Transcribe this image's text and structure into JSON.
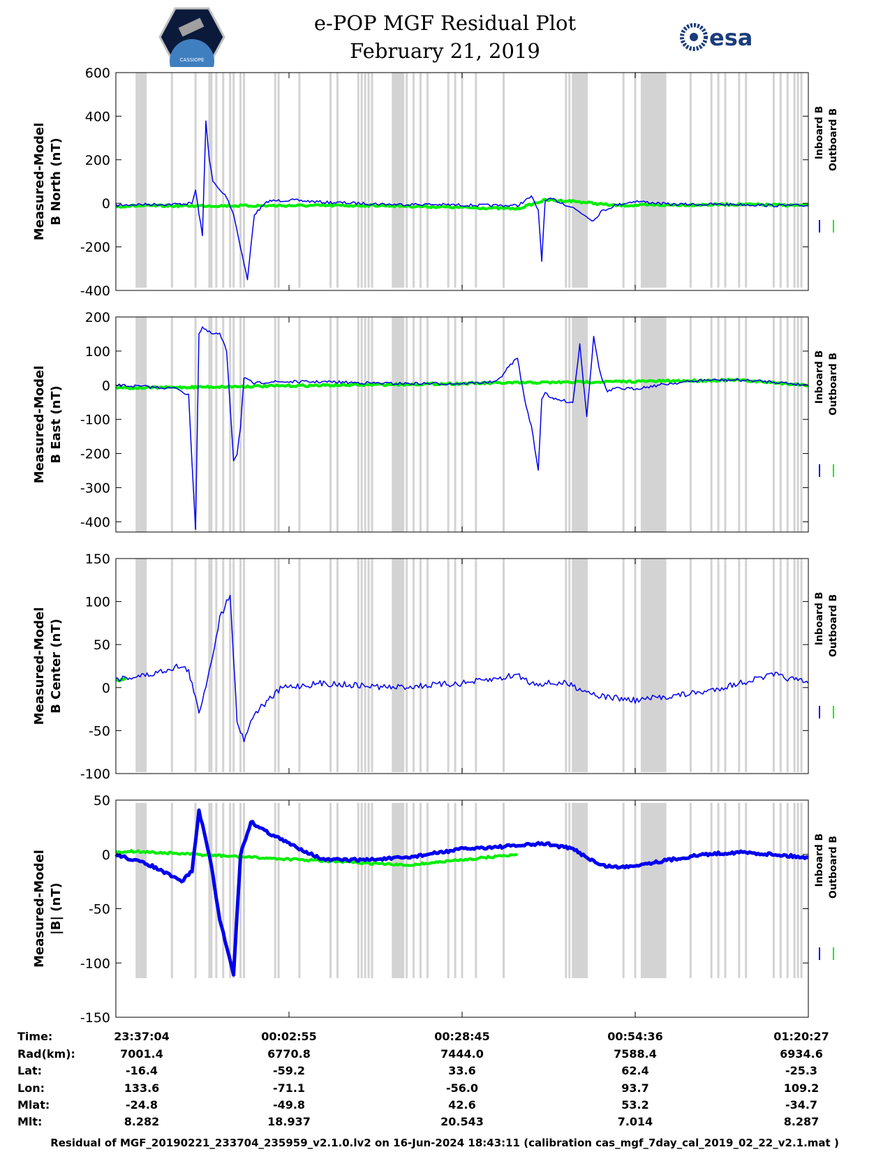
{
  "header": {
    "title_line1": "e-POP MGF Residual Plot",
    "title_line2": "February 21, 2019",
    "logo_left_text": "CASSIOPE",
    "logo_right_text": "esa"
  },
  "colors": {
    "inboard": "#0000ee",
    "outboard": "#00ee00",
    "gap_shading": "#d3d3d3"
  },
  "chart_data": [
    {
      "type": "line",
      "id": "north",
      "ylabel_line1": "Measured-Model",
      "ylabel_line2": "B North (nT)",
      "ylim": [
        -400,
        600
      ],
      "yticks": [
        "600",
        "400",
        "200",
        "0",
        "-200",
        "-400"
      ],
      "ytick_values": [
        600,
        400,
        200,
        0,
        -200,
        -400
      ],
      "legend": [
        "Inboard B",
        "Outboard B"
      ],
      "series": [
        {
          "name": "Inboard B",
          "x": [
            0,
            0.03,
            0.08,
            0.11,
            0.115,
            0.125,
            0.13,
            0.135,
            0.14,
            0.15,
            0.16,
            0.17,
            0.18,
            0.19,
            0.2,
            0.22,
            0.25,
            0.3,
            0.35,
            0.4,
            0.45,
            0.5,
            0.55,
            0.58,
            0.6,
            0.605,
            0.61,
            0.615,
            0.62,
            0.63,
            0.66,
            0.68,
            0.69,
            0.7,
            0.72,
            0.75,
            0.8,
            0.85,
            0.9,
            0.95,
            1.0
          ],
          "values": [
            -10,
            -5,
            -5,
            0,
            60,
            -150,
            380,
            200,
            100,
            60,
            30,
            -50,
            -200,
            -350,
            -50,
            10,
            15,
            5,
            0,
            -5,
            -5,
            -8,
            -10,
            -10,
            30,
            0,
            -30,
            -260,
            10,
            20,
            -20,
            -60,
            -80,
            -40,
            -10,
            10,
            -5,
            -5,
            -5,
            -10,
            -10
          ]
        },
        {
          "name": "Outboard B",
          "x": [
            0,
            0.02,
            0.38,
            0.58,
            0.62,
            0.66,
            0.72,
            0.9,
            1.0
          ],
          "values": [
            -15,
            -12,
            -10,
            -25,
            15,
            10,
            -10,
            -5,
            -10
          ]
        }
      ]
    },
    {
      "type": "line",
      "id": "east",
      "ylabel_line1": "Measured-Model",
      "ylabel_line2": "B East (nT)",
      "ylim": [
        -430,
        200
      ],
      "yticks": [
        "200",
        "100",
        "0",
        "-100",
        "-200",
        "-300",
        "-400"
      ],
      "ytick_values": [
        200,
        100,
        0,
        -100,
        -200,
        -300,
        -400
      ],
      "legend": [
        "Inboard B",
        "Outboard B"
      ],
      "series": [
        {
          "name": "Inboard B",
          "x": [
            0,
            0.05,
            0.09,
            0.105,
            0.115,
            0.12,
            0.125,
            0.13,
            0.14,
            0.15,
            0.16,
            0.17,
            0.175,
            0.18,
            0.185,
            0.2,
            0.22,
            0.3,
            0.4,
            0.45,
            0.5,
            0.55,
            0.57,
            0.58,
            0.59,
            0.6,
            0.61,
            0.615,
            0.62,
            0.63,
            0.66,
            0.67,
            0.68,
            0.69,
            0.7,
            0.71,
            0.72,
            0.75,
            0.8,
            0.85,
            0.9,
            0.95,
            1.0
          ],
          "values": [
            0,
            -5,
            -10,
            -30,
            -420,
            150,
            170,
            160,
            150,
            150,
            100,
            -220,
            -200,
            -120,
            20,
            5,
            10,
            10,
            5,
            5,
            5,
            10,
            60,
            80,
            -40,
            -120,
            -250,
            -40,
            -20,
            -40,
            -50,
            120,
            -90,
            140,
            30,
            -20,
            -10,
            -10,
            5,
            15,
            15,
            10,
            0
          ]
        },
        {
          "name": "Outboard B",
          "x": [
            0,
            0.02,
            0.5,
            0.9,
            1.0
          ],
          "values": [
            -5,
            -8,
            5,
            15,
            0
          ]
        }
      ]
    },
    {
      "type": "line",
      "id": "center",
      "ylabel_line1": "Measured-Model",
      "ylabel_line2": "B Center (nT)",
      "ylim": [
        -100,
        150
      ],
      "yticks": [
        "150",
        "100",
        "50",
        "0",
        "-50",
        "-100"
      ],
      "ytick_values": [
        150,
        100,
        50,
        0,
        -50,
        -100
      ],
      "legend": [
        "Inboard B",
        "Outboard B"
      ],
      "series": [
        {
          "name": "Inboard B",
          "x": [
            0,
            0.05,
            0.09,
            0.105,
            0.12,
            0.135,
            0.15,
            0.165,
            0.175,
            0.185,
            0.2,
            0.24,
            0.3,
            0.4,
            0.5,
            0.55,
            0.58,
            0.6,
            0.65,
            0.7,
            0.75,
            0.8,
            0.85,
            0.9,
            0.95,
            1.0
          ],
          "values": [
            10,
            15,
            25,
            20,
            -30,
            20,
            80,
            110,
            -40,
            -60,
            -30,
            0,
            5,
            0,
            5,
            10,
            15,
            5,
            5,
            -10,
            -15,
            -10,
            -5,
            5,
            15,
            5
          ]
        },
        {
          "name": "Outboard B",
          "x": [
            0,
            0.015
          ],
          "values": [
            8,
            10
          ]
        }
      ]
    },
    {
      "type": "line",
      "id": "magnitude",
      "ylabel_line1": "Measured-Model",
      "ylabel_line2": "|B| (nT)",
      "ylim": [
        -150,
        50
      ],
      "yticks": [
        "50",
        "0",
        "-50",
        "-100",
        "-150"
      ],
      "ytick_values": [
        50,
        0,
        -50,
        -100,
        -150
      ],
      "legend": [
        "Inboard B",
        "Outboard B"
      ],
      "series": [
        {
          "name": "Inboard B",
          "x": [
            0,
            0.05,
            0.095,
            0.11,
            0.12,
            0.135,
            0.15,
            0.17,
            0.18,
            0.195,
            0.22,
            0.25,
            0.3,
            0.36,
            0.42,
            0.5,
            0.58,
            0.62,
            0.66,
            0.7,
            0.73,
            0.8,
            0.85,
            0.9,
            0.95,
            1.0
          ],
          "values": [
            0,
            -10,
            -25,
            -15,
            40,
            0,
            -60,
            -110,
            0,
            30,
            20,
            10,
            -5,
            -5,
            -3,
            5,
            8,
            10,
            5,
            -10,
            -12,
            -5,
            0,
            2,
            0,
            -3
          ]
        },
        {
          "name": "Outboard B",
          "x": [
            0,
            0.02,
            0.36,
            0.42,
            0.5,
            0.58
          ],
          "values": [
            2,
            3,
            -8,
            -10,
            -5,
            0
          ]
        }
      ]
    }
  ],
  "gap_shading_x": [
    0.03,
    0.032,
    0.035,
    0.037,
    0.039,
    0.041,
    0.043,
    0.081,
    0.115,
    0.135,
    0.138,
    0.145,
    0.155,
    0.165,
    0.17,
    0.18,
    0.185,
    0.23,
    0.235,
    0.265,
    0.31,
    0.32,
    0.35,
    0.355,
    0.36,
    0.365,
    0.37,
    0.4,
    0.41,
    0.412,
    0.415,
    0.42,
    0.43,
    0.44,
    0.45,
    0.48,
    0.49,
    0.5,
    0.52,
    0.56,
    0.65,
    0.655,
    0.66,
    0.68,
    0.733,
    0.75,
    0.76,
    0.78,
    0.83,
    0.86,
    0.87,
    0.88,
    0.9,
    0.91,
    0.95,
    0.96,
    0.97,
    0.98,
    0.985,
    0.99
  ],
  "gap_blocks": [
    [
      0.4,
      0.415
    ],
    [
      0.66,
      0.68
    ],
    [
      0.758,
      0.795
    ]
  ],
  "xaxis": {
    "tick_fractions": [
      0,
      0.25,
      0.5,
      0.75,
      1.0
    ],
    "row_labels": [
      "Time:",
      "Rad(km):",
      "Lat:",
      "Lon:",
      "Mlat:",
      "Mlt:"
    ],
    "columns": [
      [
        "23:37:04",
        "7001.4",
        "-16.4",
        "133.6",
        "-24.8",
        "8.282"
      ],
      [
        "00:02:55",
        "6770.8",
        "-59.2",
        "-71.1",
        "-49.8",
        "18.937"
      ],
      [
        "00:28:45",
        "7444.0",
        "33.6",
        "-56.0",
        "42.6",
        "20.543"
      ],
      [
        "00:54:36",
        "7588.4",
        "62.4",
        "93.7",
        "53.2",
        "7.014"
      ],
      [
        "01:20:27",
        "6934.6",
        "-25.3",
        "109.2",
        "-34.7",
        "8.287"
      ]
    ]
  },
  "footer": "Residual of MGF_20190221_233704_235959_v2.1.0.lv2 on 16-Jun-2024 18:43:11 (calibration cas_mgf_7day_cal_2019_02_22_v2.1.mat )"
}
